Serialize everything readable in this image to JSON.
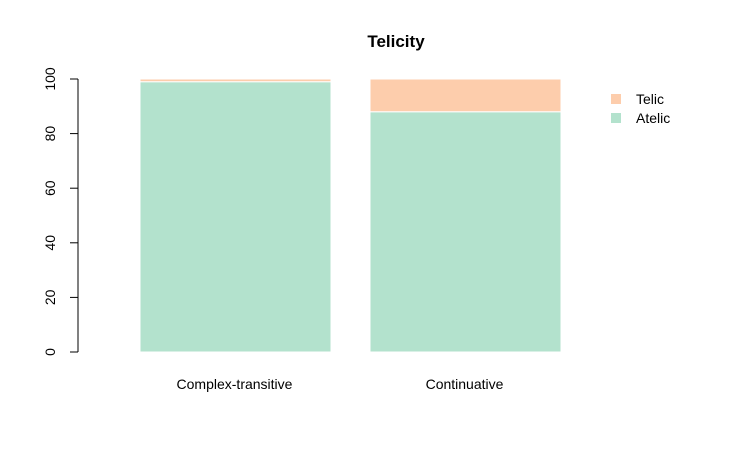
{
  "chart_data": {
    "type": "bar",
    "stacked": true,
    "title": "Telicity",
    "xlabel": "",
    "ylabel": "",
    "ylim": [
      0,
      100
    ],
    "yticks": [
      0,
      20,
      40,
      60,
      80,
      100
    ],
    "categories": [
      "Complex-transitive",
      "Continuative"
    ],
    "series": [
      {
        "name": "Atelic",
        "values": [
          99,
          88
        ],
        "color": "#b3e2cd"
      },
      {
        "name": "Telic",
        "values": [
          1,
          12
        ],
        "color": "#fdcdac"
      }
    ],
    "legend": {
      "position": "top-right",
      "entries": [
        "Telic",
        "Atelic"
      ]
    },
    "grid": false
  }
}
